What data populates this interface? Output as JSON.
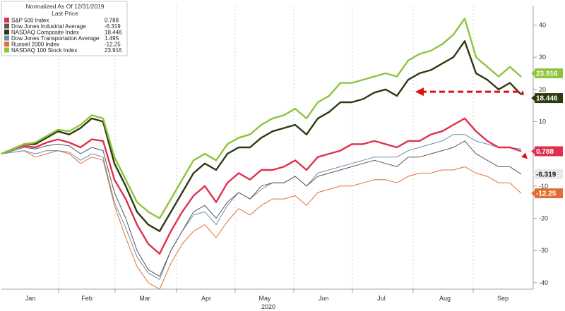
{
  "chart_data": {
    "type": "line",
    "legend": {
      "title_line1": "Normalized As Of 12/31/2019",
      "title_line2": "Last Price",
      "placement": "top-left"
    },
    "x_axis": {
      "tick_labels": [
        "Jan",
        "Feb",
        "Mar",
        "Apr",
        "May",
        "Jun",
        "Jul",
        "Aug",
        "Sep"
      ],
      "year_label": "2020"
    },
    "y_axis": {
      "ticks": [
        40,
        30,
        20,
        10,
        0,
        -10,
        -20,
        -30,
        -40
      ],
      "tick_labels": [
        "40",
        "30",
        "20",
        "10",
        "-10",
        "-20",
        "-30",
        "-40"
      ],
      "range": [
        -42,
        46
      ],
      "side": "right"
    },
    "grid": "dashed-vertical",
    "series": [
      {
        "name": "S&P 500 Index",
        "last": "0.788",
        "color": "#e0304e",
        "label_bg": "#e0304e",
        "width": 2.4,
        "values": [
          0,
          1.5,
          2.5,
          2,
          3.5,
          4.5,
          3.5,
          2,
          4.5,
          4,
          -8,
          -14,
          -22,
          -28,
          -31,
          -24,
          -18,
          -13,
          -10,
          -15,
          -9,
          -6,
          -8,
          -5,
          -5,
          -4,
          -2,
          -5,
          -1,
          0,
          1,
          3,
          3,
          4,
          3,
          2,
          4,
          4,
          6,
          7,
          9,
          11,
          7,
          4,
          2,
          2,
          0.8
        ]
      },
      {
        "name": "Dow Jones Industrial Average",
        "last": "-6.319",
        "color": "#555555",
        "label_bg": "#e8e8e8",
        "width": 1.0,
        "values": [
          0,
          1,
          2,
          1.5,
          2.5,
          3,
          2.5,
          0,
          2,
          1,
          -12,
          -20,
          -30,
          -36,
          -38,
          -30,
          -24,
          -18,
          -16,
          -20,
          -15,
          -12,
          -14,
          -10,
          -9,
          -9,
          -7,
          -10,
          -7,
          -6,
          -5,
          -4,
          -3,
          -2,
          -3,
          -4,
          -1,
          -1,
          0,
          1,
          2,
          4,
          0,
          -2,
          -4,
          -4,
          -6.3
        ]
      },
      {
        "name": "NASDAQ Composite Index",
        "last": "18.446",
        "color": "#2c3a10",
        "label_bg": "#2c3a10",
        "width": 2.4,
        "values": [
          0,
          1.5,
          3,
          3,
          5,
          7,
          6,
          8,
          11,
          10,
          -3,
          -10,
          -18,
          -22,
          -24,
          -18,
          -12,
          -6,
          -3,
          -5,
          0,
          2,
          2,
          5,
          7,
          8,
          9,
          6,
          11,
          13,
          16,
          16,
          17,
          19,
          20,
          18,
          23,
          25,
          26,
          28,
          30,
          35,
          25,
          23,
          20,
          22,
          18.4
        ]
      },
      {
        "name": "Dow Jones Transportation Average",
        "last": "1.495",
        "color": "#6a8fb0",
        "label_bg": "#6a8fb0",
        "width": 1.0,
        "values": [
          0,
          0.5,
          1,
          0,
          1,
          1,
          0.5,
          -2,
          0,
          -1,
          -15,
          -23,
          -32,
          -37,
          -39,
          -30,
          -24,
          -19,
          -18,
          -22,
          -16,
          -12,
          -14,
          -11,
          -9,
          -9,
          -7,
          -10,
          -6,
          -5,
          -4,
          -3,
          -2,
          -1,
          -1,
          -1,
          1,
          2,
          3,
          4,
          6,
          6,
          4,
          3,
          2,
          2,
          1.5
        ]
      },
      {
        "name": "Russell 2000 Index",
        "last": "-12.25",
        "color": "#e07030",
        "label_bg": "#e07030",
        "width": 1.0,
        "values": [
          0,
          0.5,
          1,
          -1,
          0,
          1,
          0,
          -3,
          -1,
          -2,
          -16,
          -26,
          -35,
          -40,
          -42,
          -34,
          -28,
          -24,
          -22,
          -26,
          -21,
          -17,
          -19,
          -16,
          -14,
          -14,
          -13,
          -16,
          -12,
          -11,
          -10,
          -10,
          -9,
          -8,
          -8,
          -9,
          -7,
          -6,
          -6,
          -5,
          -5,
          -4,
          -6,
          -7,
          -9,
          -9,
          -12.25
        ]
      },
      {
        "name": "NASDAQ 100 Stock Index",
        "last": "23.916",
        "color": "#8dc43a",
        "label_bg": "#8dc43a",
        "width": 2.4,
        "values": [
          0,
          1.5,
          3,
          3.5,
          5.5,
          7.5,
          7,
          9,
          12,
          11,
          -1,
          -8,
          -15,
          -18,
          -20,
          -14,
          -8,
          -2,
          0,
          -2,
          3,
          5,
          6,
          9,
          11,
          12,
          14,
          11,
          16,
          18,
          22,
          22,
          23,
          24,
          25,
          24,
          29,
          31,
          32,
          34,
          37,
          42,
          30,
          27,
          24,
          27,
          23.9
        ]
      }
    ],
    "annotation": {
      "type": "dashed-arrow",
      "color": "#e01010",
      "points_to": "NASDAQ Composite Index"
    }
  }
}
